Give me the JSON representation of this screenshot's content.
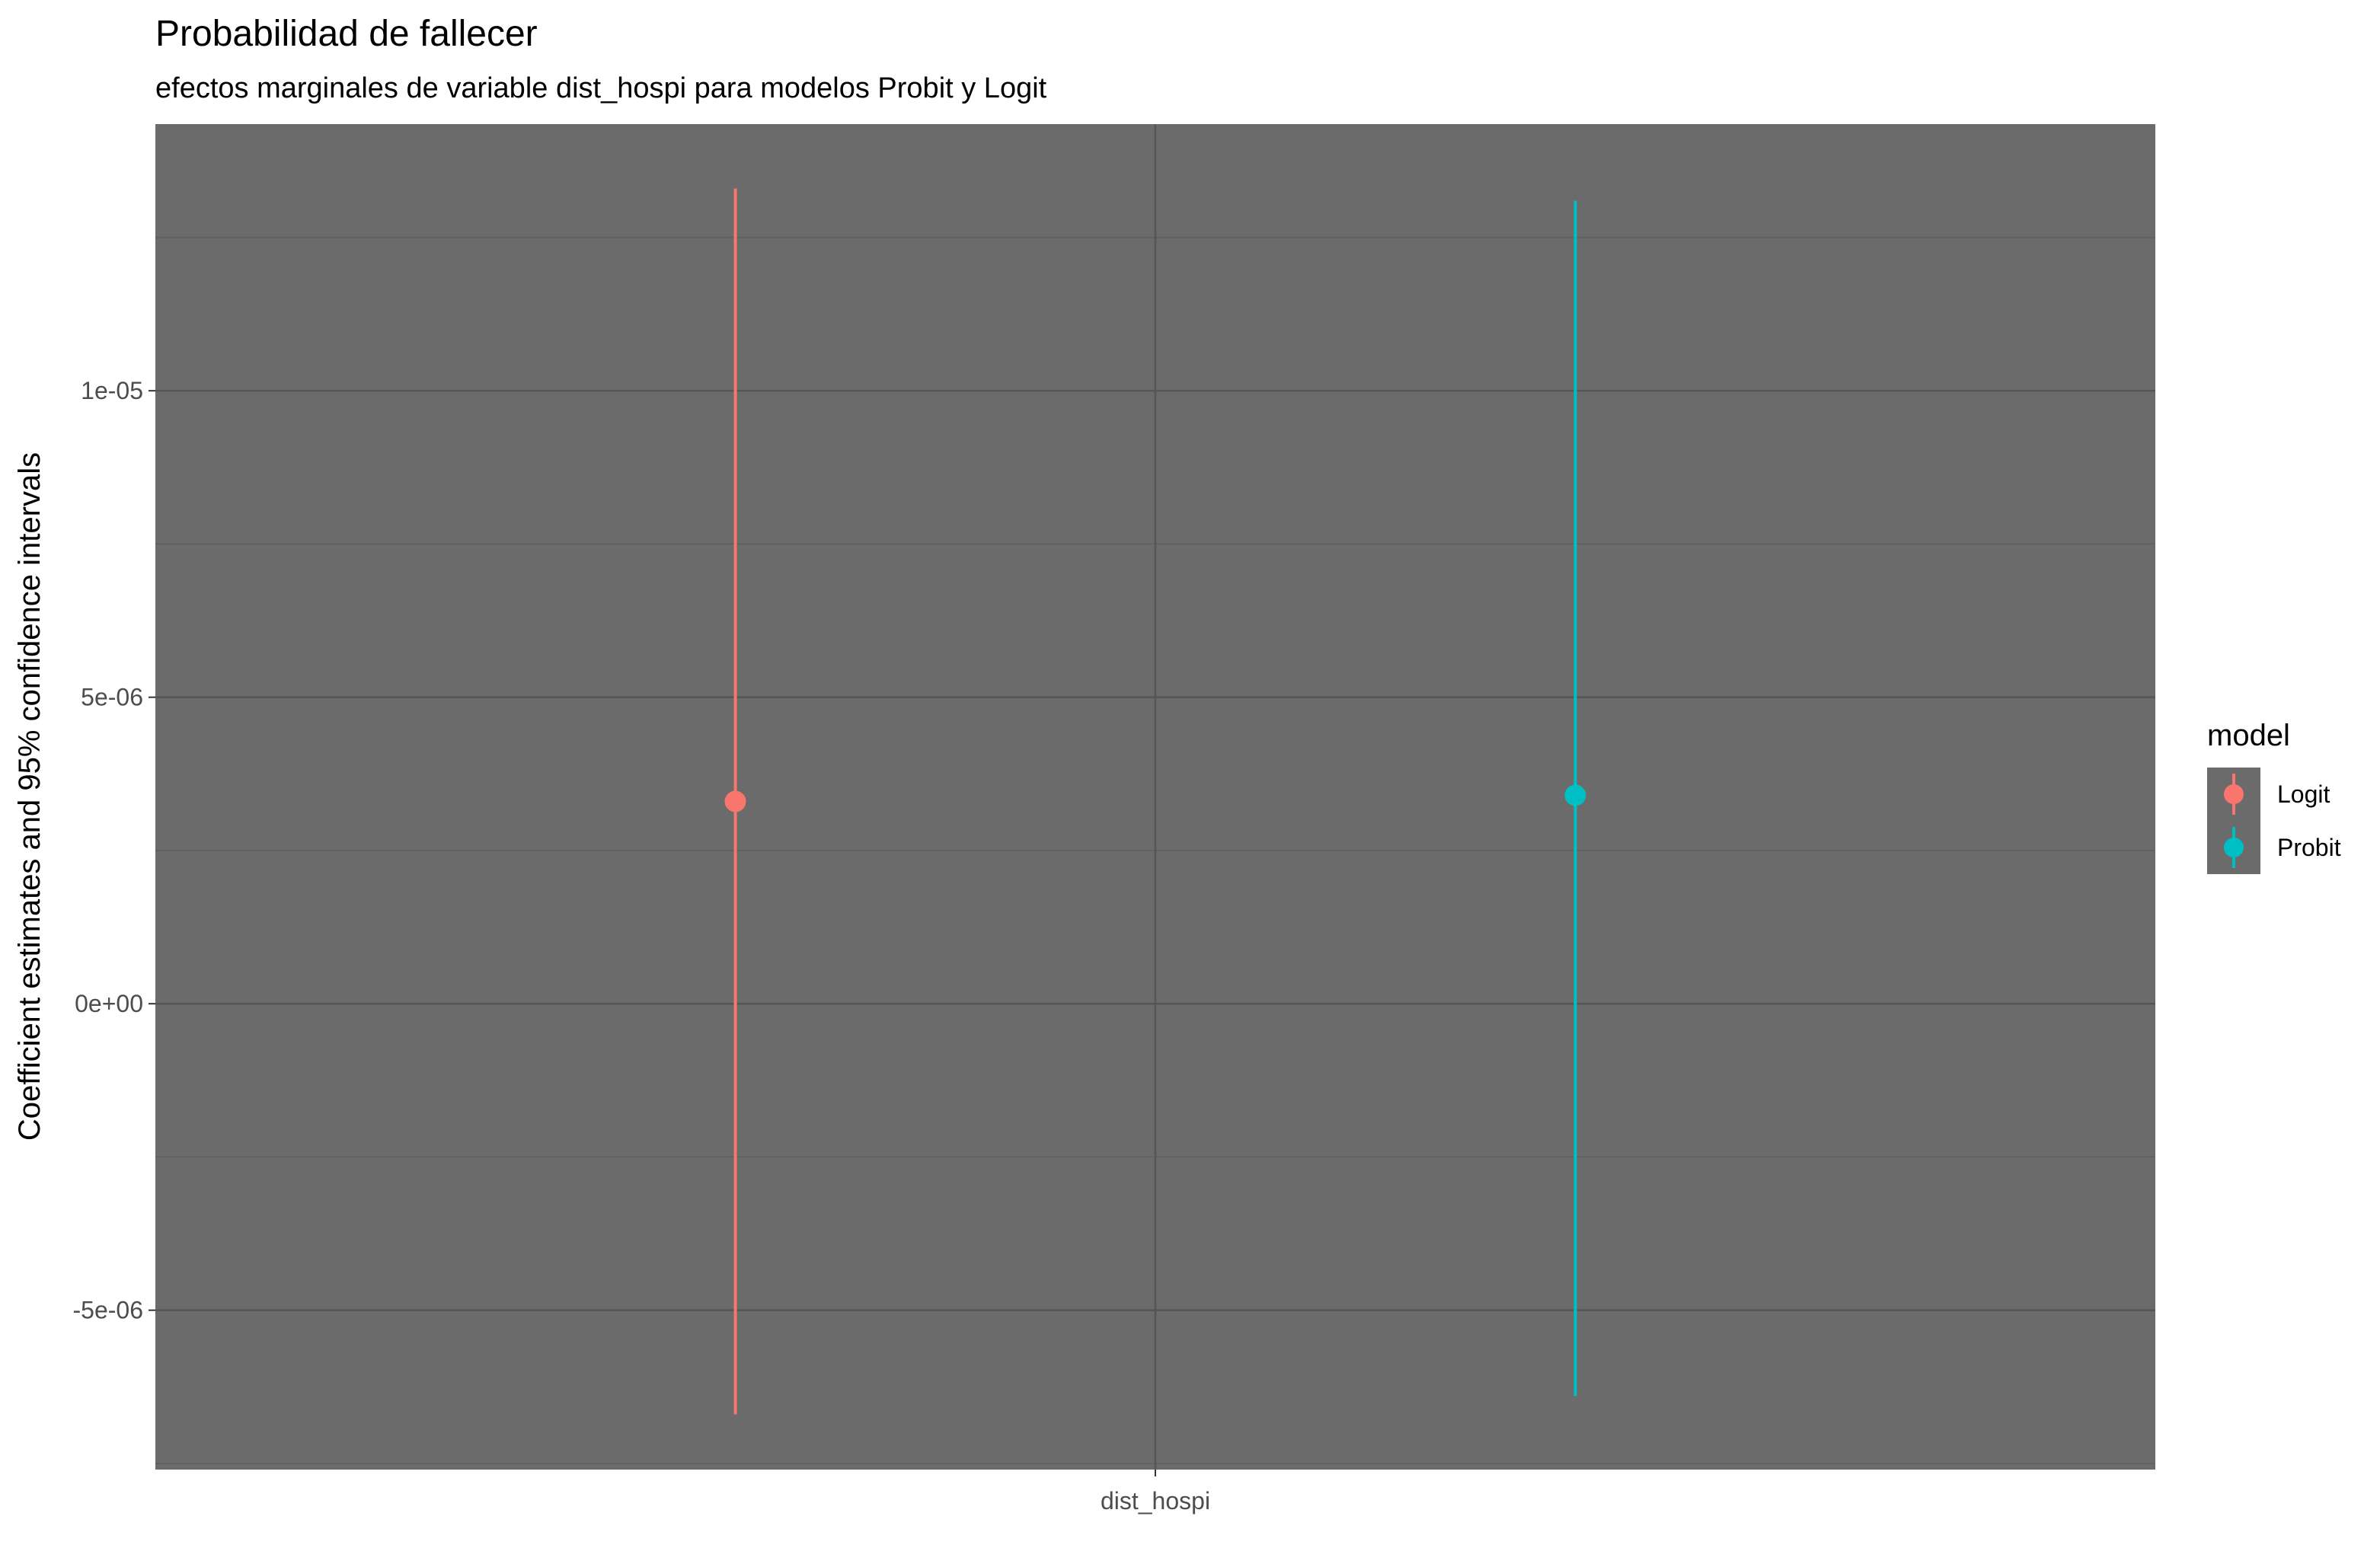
{
  "chart_data": {
    "type": "scatter",
    "title": "Probabilidad de fallecer",
    "subtitle": "efectos marginales de variable dist_hospi para modelos Probit y Logit",
    "xlabel": "",
    "ylabel": "Coefficient estimates and 95% confidence intervals",
    "categories": [
      "dist_hospi"
    ],
    "ylim": [
      -7.6e-06,
      1.435e-05
    ],
    "y_ticks": [
      {
        "value": -5e-06,
        "label": "-5e-06"
      },
      {
        "value": 0,
        "label": "0e+00"
      },
      {
        "value": 5e-06,
        "label": "5e-06"
      },
      {
        "value": 1e-05,
        "label": "1e-05"
      }
    ],
    "grid": true,
    "legend": {
      "title": "model",
      "position": "right"
    },
    "series": [
      {
        "name": "Logit",
        "color": "#F8766D",
        "estimate": 3.3e-06,
        "ci_low": -6.7e-06,
        "ci_high": 1.33e-05
      },
      {
        "name": "Probit",
        "color": "#00BFC4",
        "estimate": 3.4e-06,
        "ci_low": -6.4e-06,
        "ci_high": 1.31e-05
      }
    ],
    "panel_color": "#6B6B6B"
  }
}
